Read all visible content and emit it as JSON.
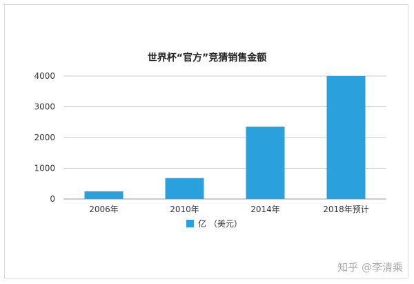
{
  "chart_data": {
    "type": "bar",
    "title": "世界杯“官方”竞猜销售金额",
    "categories": [
      "2006年",
      "2010年",
      "2014年",
      "2018年预计"
    ],
    "series": [
      {
        "name": "亿 （美元）",
        "values": [
          250,
          680,
          2350,
          4000
        ]
      }
    ],
    "ylim": [
      0,
      4000
    ],
    "yticks": [
      0,
      1000,
      2000,
      3000,
      4000
    ],
    "grid": true,
    "legend_position": "bottom-center",
    "bar_color": "#2aa1dd"
  },
  "watermark": "知乎 @李清乘"
}
